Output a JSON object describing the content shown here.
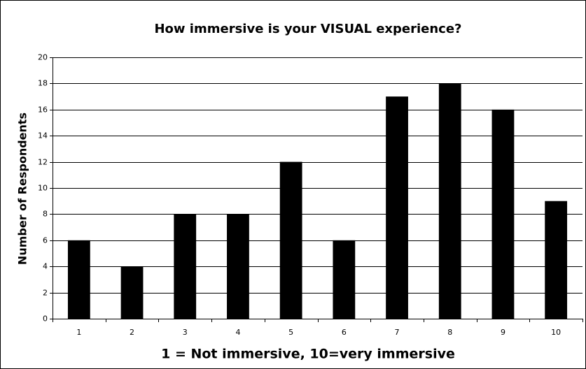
{
  "chart_data": {
    "type": "bar",
    "title": "How immersive is your VISUAL experience?",
    "x_label": "1 = Not immersive, 10=very immersive",
    "y_label": "Number of Respondents",
    "categories": [
      "1",
      "2",
      "3",
      "4",
      "5",
      "6",
      "7",
      "8",
      "9",
      "10"
    ],
    "values": [
      6,
      4,
      8,
      8,
      12,
      6,
      17,
      18,
      16,
      9
    ],
    "color": "#000000",
    "ylim": [
      0,
      20
    ],
    "yticks": [
      0,
      2,
      4,
      6,
      8,
      10,
      12,
      14,
      16,
      18,
      20
    ],
    "grid": true
  }
}
